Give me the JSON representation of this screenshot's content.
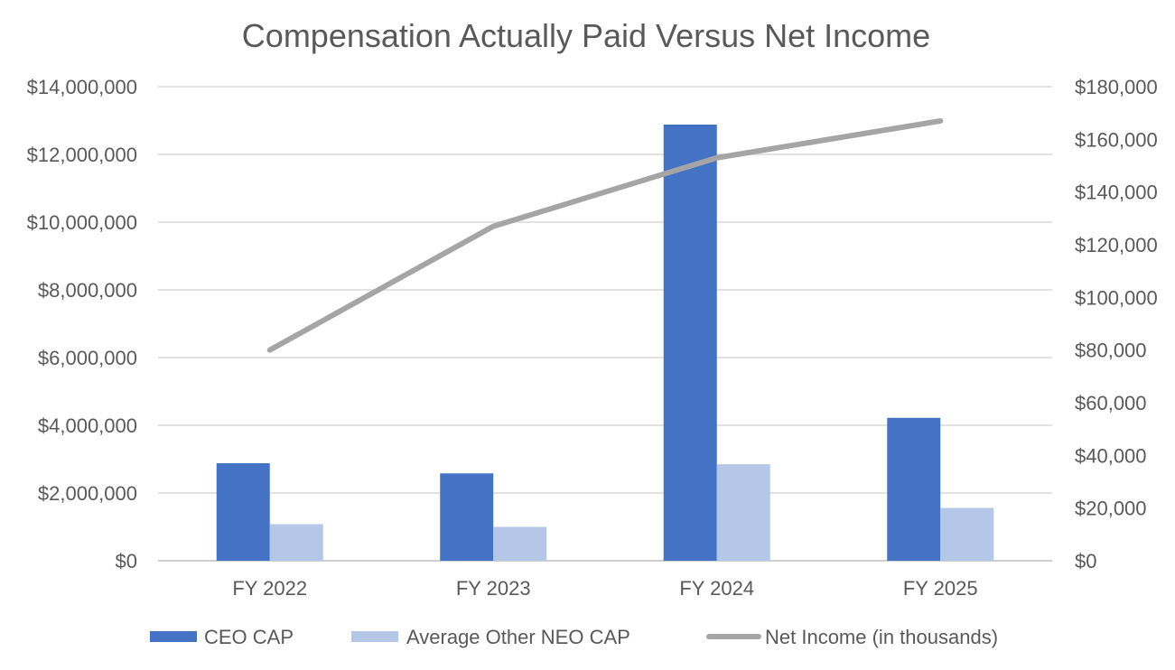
{
  "chart_data": {
    "type": "bar",
    "title": "Compensation Actually Paid Versus Net Income",
    "categories": [
      "FY 2022",
      "FY 2023",
      "FY 2024",
      "FY 2025"
    ],
    "series": [
      {
        "name": "CEO CAP",
        "type": "bar",
        "axis": "left",
        "color": "#4472C4",
        "values": [
          2880000,
          2580000,
          12880000,
          4220000
        ]
      },
      {
        "name": "Average Other NEO CAP",
        "type": "bar",
        "axis": "left",
        "color": "#B4C7E7",
        "values": [
          1080000,
          1000000,
          2850000,
          1560000
        ]
      },
      {
        "name": "Net Income (in thousands)",
        "type": "line",
        "axis": "right",
        "color": "#A5A5A5",
        "values": [
          80000,
          127000,
          153000,
          167000
        ]
      }
    ],
    "y_left": {
      "range": [
        0,
        14000000
      ],
      "ticks": [
        0,
        2000000,
        4000000,
        6000000,
        8000000,
        10000000,
        12000000,
        14000000
      ],
      "tick_labels": [
        "$0",
        "$2,000,000",
        "$4,000,000",
        "$6,000,000",
        "$8,000,000",
        "$10,000,000",
        "$12,000,000",
        "$14,000,000"
      ]
    },
    "y_right": {
      "range": [
        0,
        180000
      ],
      "ticks": [
        0,
        20000,
        40000,
        60000,
        80000,
        100000,
        120000,
        140000,
        160000,
        180000
      ],
      "tick_labels": [
        "$0",
        "$20,000",
        "$40,000",
        "$60,000",
        "$80,000",
        "$100,000",
        "$120,000",
        "$140,000",
        "$160,000",
        "$180,000"
      ]
    },
    "grid": true,
    "legend_position": "bottom"
  }
}
